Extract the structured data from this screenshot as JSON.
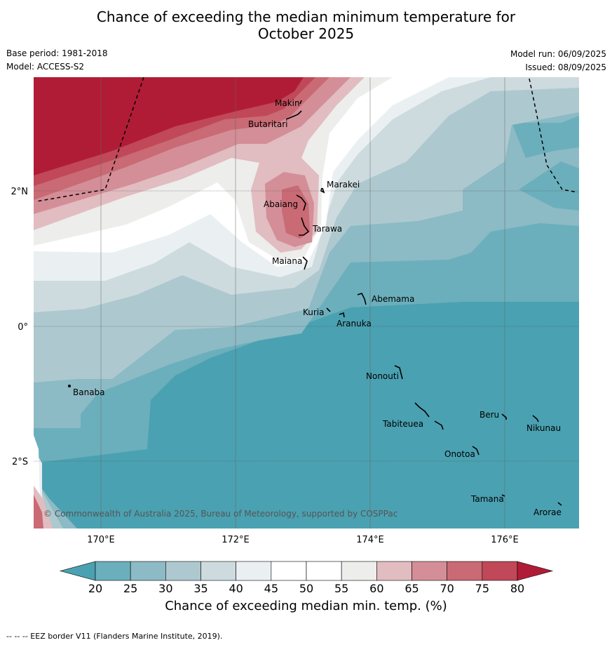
{
  "title_line1": "Chance of exceeding the median minimum temperature for",
  "title_line2": "October 2025",
  "base_period": "Base period: 1981-2018",
  "model": "Model: ACCESS-S2",
  "model_run": "Model run: 06/09/2025",
  "issued": "Issued: 08/09/2025",
  "copyright": "© Commonwealth of Australia 2025, Bureau of Meteorology, supported by COSPPac",
  "lat_labels": [
    "2°N",
    "0°",
    "2°S"
  ],
  "lon_labels": [
    "170°E",
    "172°E",
    "174°E",
    "176°E"
  ],
  "places": [
    "Makin",
    "Butaritari",
    "Marakei",
    "Abaiang",
    "Tarawa",
    "Maiana",
    "Abemama",
    "Kuria",
    "Aranuka",
    "Nonouti",
    "Banaba",
    "Beru",
    "Tabiteuea",
    "Nikunau",
    "Onotoa",
    "Tamana",
    "Arorae"
  ],
  "colorbar": {
    "ticks": [
      "20",
      "25",
      "30",
      "35",
      "40",
      "45",
      "50",
      "55",
      "60",
      "65",
      "70",
      "75",
      "80"
    ],
    "colors": [
      "#4aa1b1",
      "#6bafbc",
      "#8cbac5",
      "#adc9cf",
      "#cddbdf",
      "#eaf0f2",
      "#ffffff",
      "#ffffff",
      "#ededeb",
      "#e1bcc1",
      "#d48e97",
      "#c96a74",
      "#c04858",
      "#b01c36"
    ],
    "title": "Chance of exceeding median min. temp. (%)"
  },
  "footnote": "--  --  -- EEZ border V11 (Flanders Marine Institute, 2019)."
}
